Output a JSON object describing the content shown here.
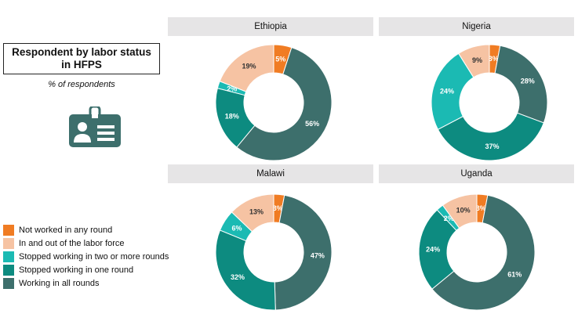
{
  "title": "Respondent by labor status in HFPS",
  "subtitle": "% of respondents",
  "icon": "id-badge-icon",
  "colors": {
    "not_worked": "#f07c23",
    "in_and_out": "#f6c3a3",
    "stopped_two_plus": "#1bbab3",
    "stopped_one": "#0d8b80",
    "working_all": "#3d6f6c"
  },
  "legend": [
    {
      "label": "Not worked in any round",
      "color": "#f07c23"
    },
    {
      "label": "In and out of the labor force",
      "color": "#f6c3a3"
    },
    {
      "label": "Stopped working in two or more rounds",
      "color": "#1bbab3"
    },
    {
      "label": "Stopped working in one round",
      "color": "#0d8b80"
    },
    {
      "label": "Working in all rounds",
      "color": "#3d6f6c"
    }
  ],
  "chart_data": [
    {
      "type": "pie",
      "title": "Ethiopia",
      "categories": [
        "Not worked in any round",
        "Working in all rounds",
        "Stopped working in one round",
        "Stopped working in two or more rounds",
        "In and out of the labor force"
      ],
      "values": [
        5,
        56,
        18,
        2,
        19
      ],
      "labels": [
        "5%",
        "56%",
        "18%",
        "2%",
        "19%"
      ]
    },
    {
      "type": "pie",
      "title": "Nigeria",
      "categories": [
        "Not worked in any round",
        "Working in all rounds",
        "Stopped working in one round",
        "Stopped working in two or more rounds",
        "In and out of the labor force"
      ],
      "values": [
        3,
        28,
        37,
        24,
        9
      ],
      "labels": [
        "3%",
        "28%",
        "37%",
        "24%",
        "9%"
      ]
    },
    {
      "type": "pie",
      "title": "Malawi",
      "categories": [
        "Not worked in any round",
        "Working in all rounds",
        "Stopped working in one round",
        "Stopped working in two or more rounds",
        "In and out of the labor force"
      ],
      "values": [
        3,
        47,
        32,
        6,
        13
      ],
      "labels": [
        "3%",
        "47%",
        "32%",
        "6%",
        "13%"
      ]
    },
    {
      "type": "pie",
      "title": "Uganda",
      "categories": [
        "Not worked in any round",
        "Working in all rounds",
        "Stopped working in one round",
        "Stopped working in two or more rounds",
        "In and out of the labor force"
      ],
      "values": [
        3,
        61,
        24,
        2,
        10
      ],
      "labels": [
        "3%",
        "61%",
        "24%",
        "2%",
        "10%"
      ]
    }
  ]
}
